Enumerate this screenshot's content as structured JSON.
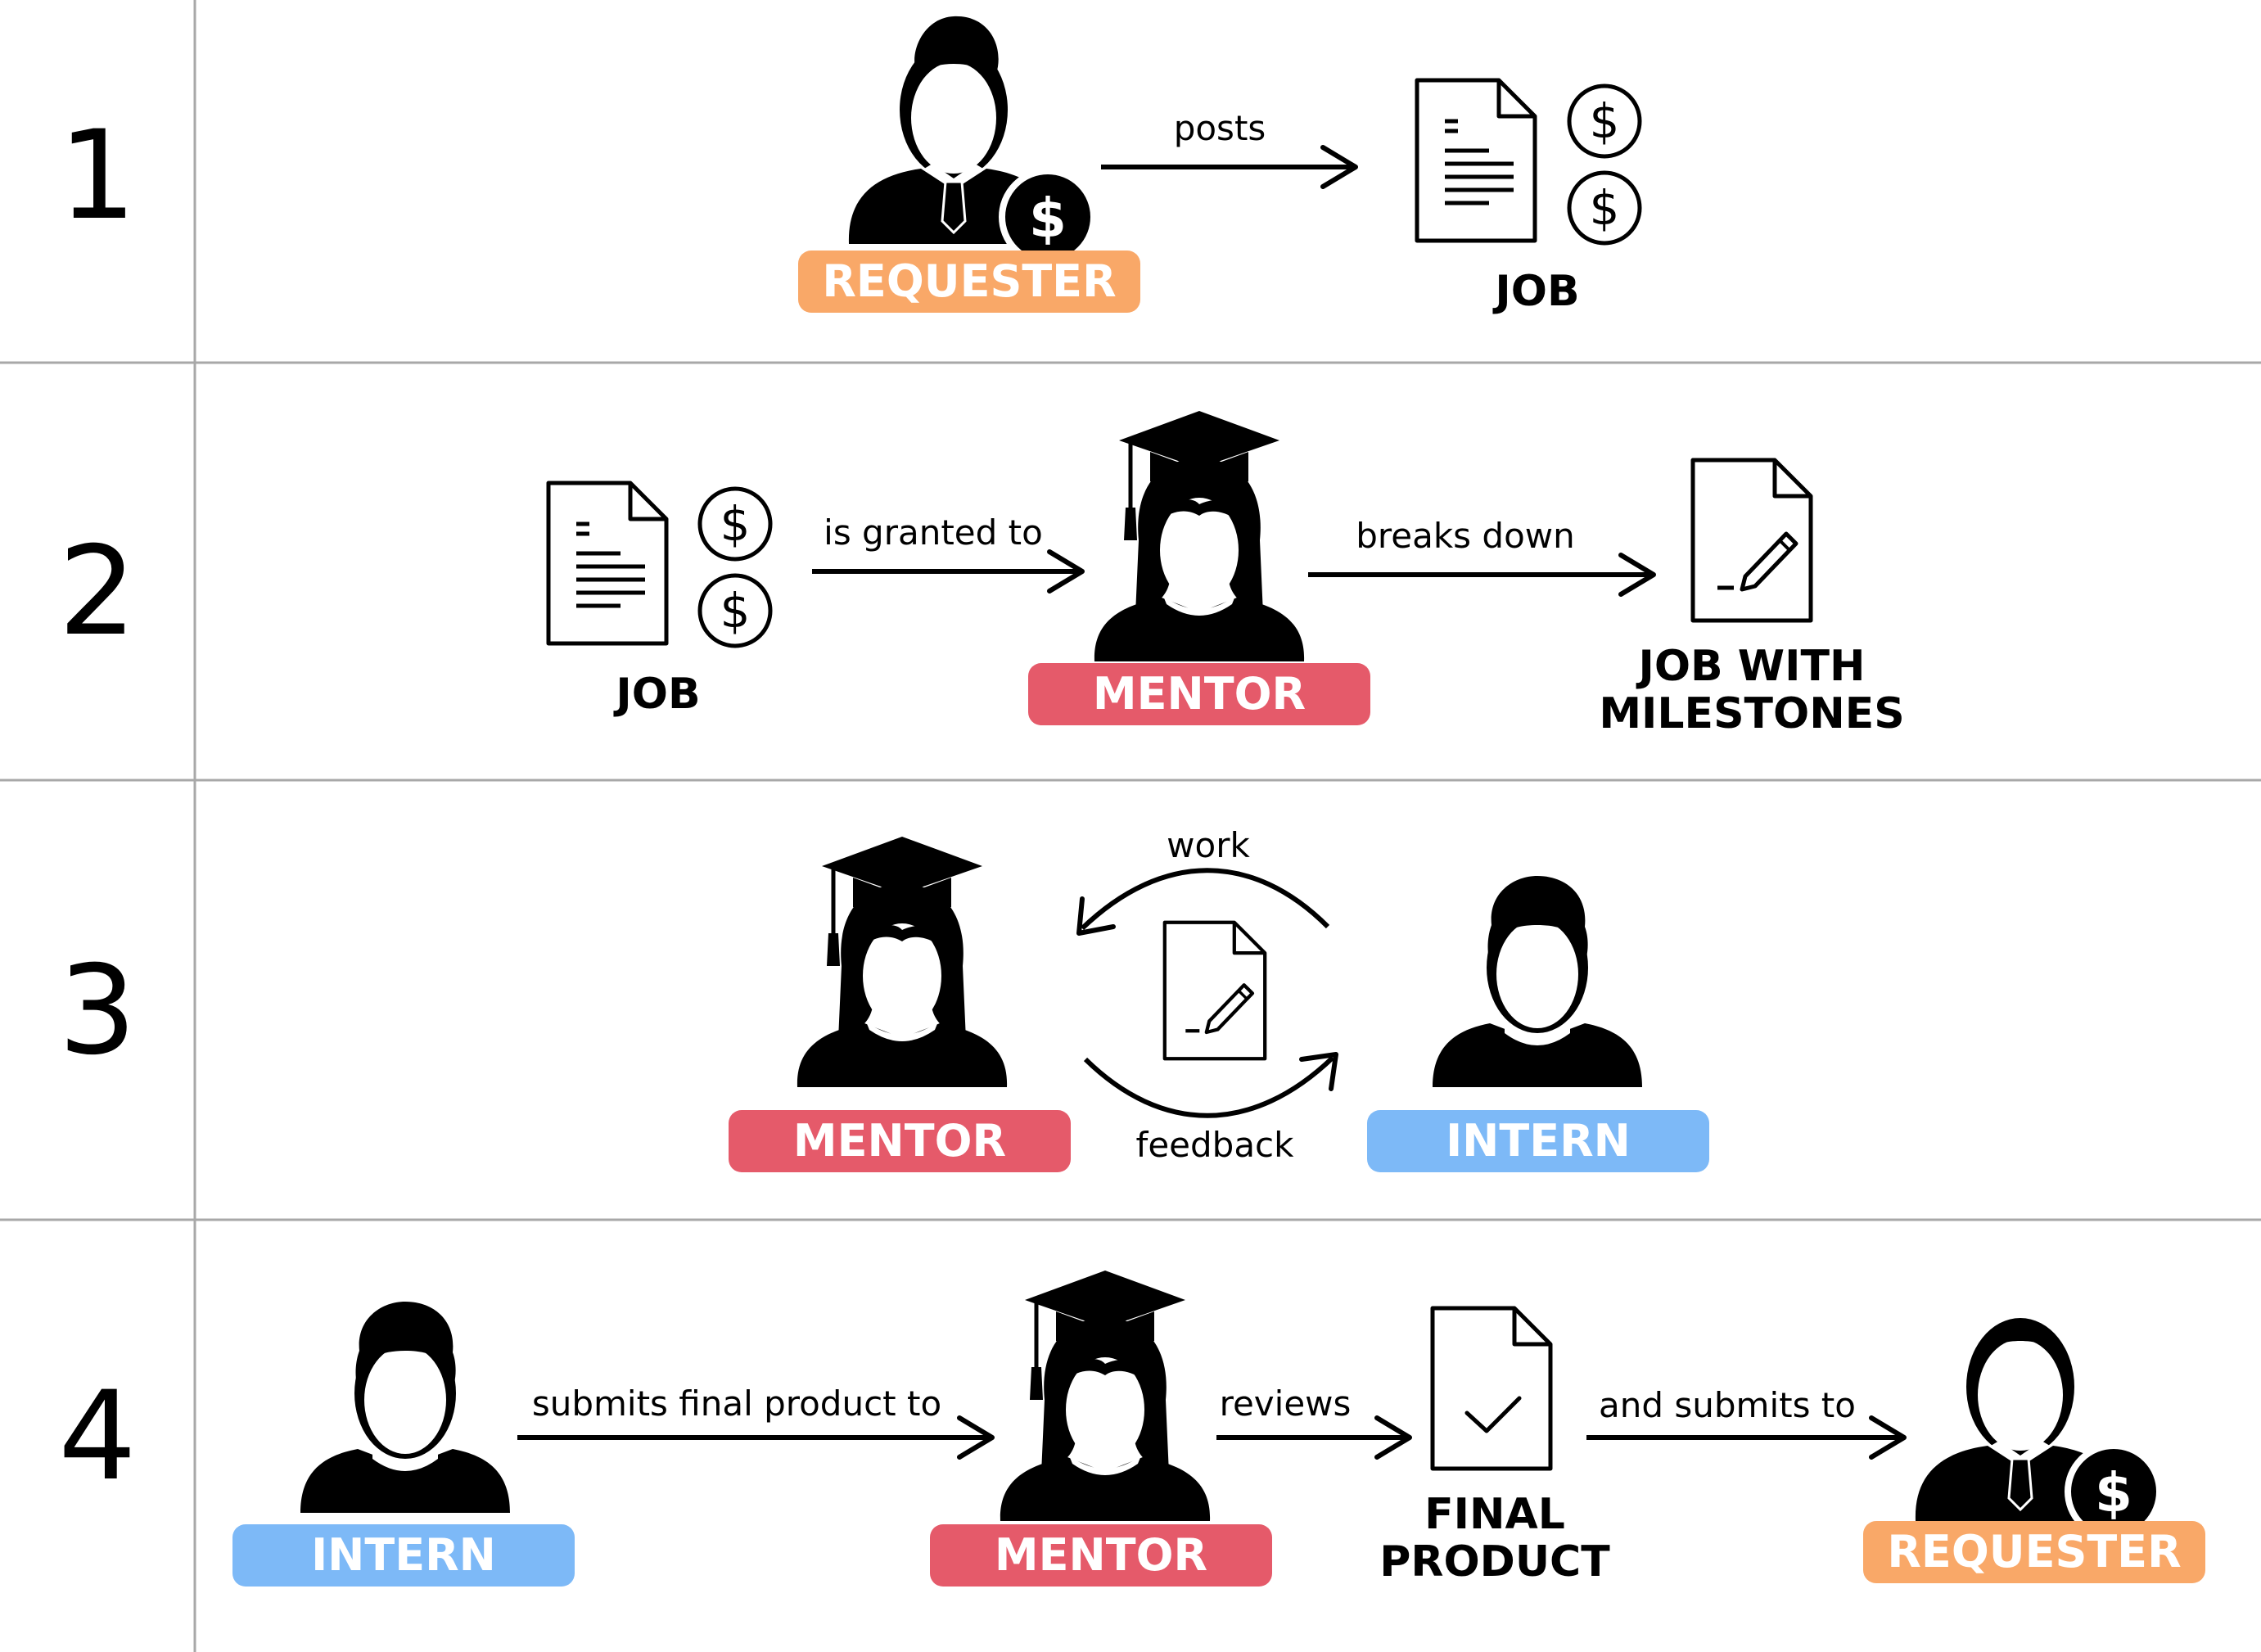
{
  "steps": [
    "1",
    "2",
    "3",
    "4"
  ],
  "colors": {
    "requester": "#F9A868",
    "mentor": "#E55A6A",
    "intern": "#7DB9F7",
    "divider": "#A8A8A8"
  },
  "row1": {
    "requester_badge": "REQUESTER",
    "edge": "posts",
    "job_label": "JOB"
  },
  "row2": {
    "job_label": "JOB",
    "edge1": "is granted to",
    "mentor_badge": "MENTOR",
    "edge2": "breaks down",
    "milestones_label_line1": "JOB WITH",
    "milestones_label_line2": "MILESTONES"
  },
  "row3": {
    "mentor_badge": "MENTOR",
    "edge_top": "work",
    "edge_bottom": "feedback",
    "intern_badge": "INTERN"
  },
  "row4": {
    "intern_badge": "INTERN",
    "edge1": "submits final product to",
    "mentor_badge": "MENTOR",
    "edge2": "reviews",
    "product_label_line1": "FINAL",
    "product_label_line2": "PRODUCT",
    "edge3": "and submits to",
    "requester_badge": "REQUESTER"
  },
  "icons": {
    "requester": "businessman-icon",
    "mentor": "graduate-woman-icon",
    "intern": "person-icon",
    "job": "document-icon",
    "payment": "dollar-coin-icon",
    "milestones": "document-edit-icon",
    "final_product": "document-check-icon"
  }
}
